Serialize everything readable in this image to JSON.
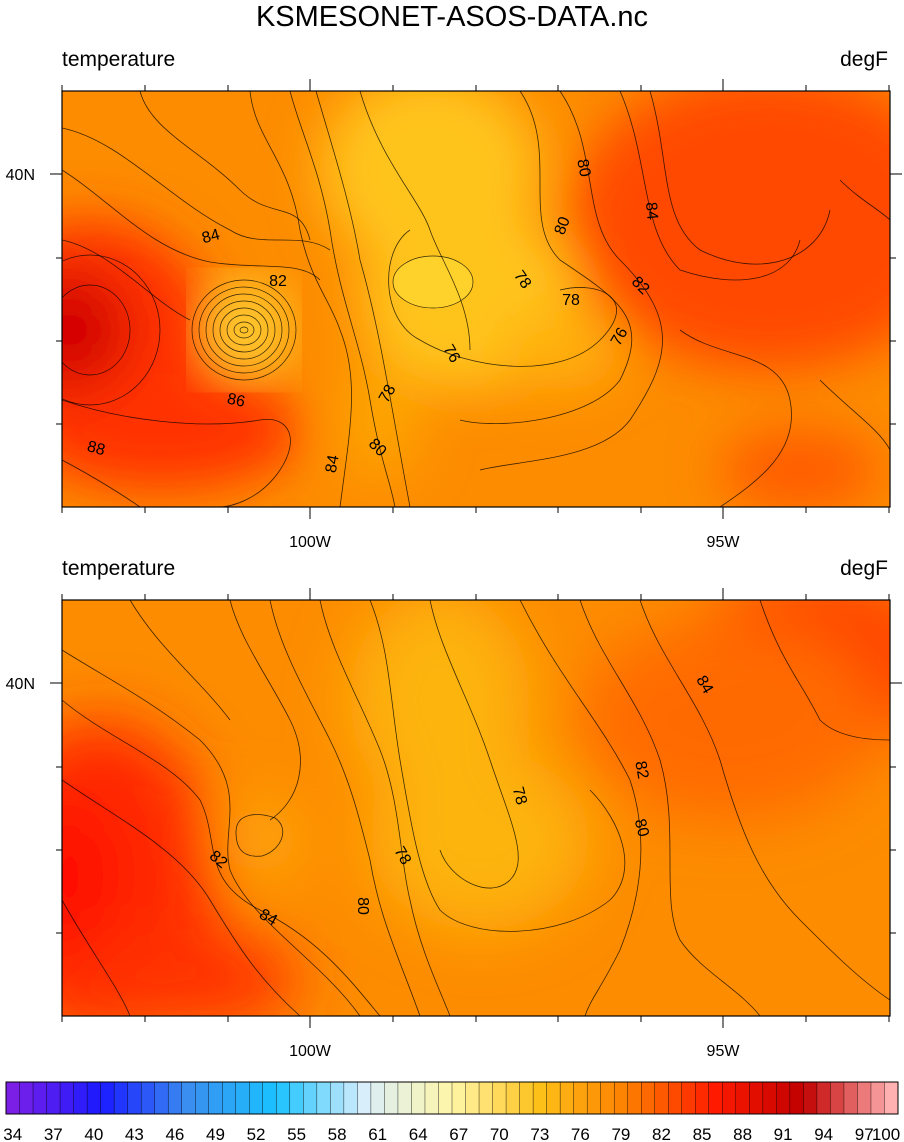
{
  "chart_data": {
    "type": "heatmap",
    "title": "KSMESONET-ASOS-DATA.nc",
    "panels": [
      {
        "left_label": "temperature",
        "right_label": "degF",
        "x_ticks": [
          "100W",
          "95W"
        ],
        "y_ticks": [
          "40N"
        ],
        "contour_labels": [
          {
            "text": "84",
            "rot": -15
          },
          {
            "text": "82",
            "rot": 0
          },
          {
            "text": "86",
            "rot": 12
          },
          {
            "text": "88",
            "rot": 15
          },
          {
            "text": "84",
            "rot": -80
          },
          {
            "text": "80",
            "rot": 45
          },
          {
            "text": "78",
            "rot": -60
          },
          {
            "text": "76",
            "rot": 60
          },
          {
            "text": "78",
            "rot": 55
          },
          {
            "text": "78",
            "rot": 0
          },
          {
            "text": "76",
            "rot": -60
          },
          {
            "text": "82",
            "rot": 45
          },
          {
            "text": "80",
            "rot": -70
          },
          {
            "text": "80",
            "rot": 80
          },
          {
            "text": "84",
            "rot": 85
          }
        ]
      },
      {
        "left_label": "temperature",
        "right_label": "degF",
        "x_ticks": [
          "100W",
          "95W"
        ],
        "y_ticks": [
          "40N"
        ],
        "contour_labels": [
          {
            "text": "82",
            "rot": 40
          },
          {
            "text": "84",
            "rot": 30
          },
          {
            "text": "80",
            "rot": 90
          },
          {
            "text": "78",
            "rot": 60
          },
          {
            "text": "78",
            "rot": 75
          },
          {
            "text": "82",
            "rot": 80
          },
          {
            "text": "80",
            "rot": 75
          },
          {
            "text": "84",
            "rot": 60
          }
        ]
      }
    ],
    "colorbar": {
      "min": 34,
      "max": 100,
      "step": 1,
      "tick_labels": [
        "34",
        "37",
        "40",
        "43",
        "46",
        "49",
        "52",
        "55",
        "58",
        "61",
        "64",
        "67",
        "70",
        "73",
        "76",
        "79",
        "82",
        "85",
        "88",
        "91",
        "94",
        "97",
        "100"
      ]
    }
  },
  "colors": {
    "stops": [
      "#7b1fe6",
      "#1a1aff",
      "#3a8ef0",
      "#19c2ff",
      "#d9eefb",
      "#fff6a8",
      "#fdc018",
      "#fd7f00",
      "#ff1a00",
      "#c00000",
      "#ffb0b0"
    ]
  }
}
